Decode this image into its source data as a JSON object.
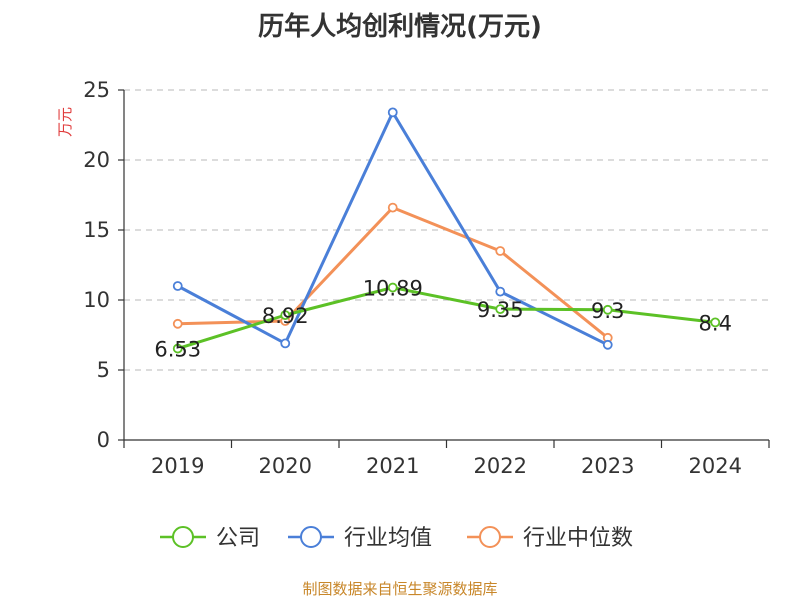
{
  "chart_data": {
    "type": "line",
    "title": "历年人均创利情况(万元)",
    "ylabel": "万元",
    "xlabel": "",
    "categories": [
      "2019",
      "2020",
      "2021",
      "2022",
      "2023",
      "2024"
    ],
    "ylim": [
      0,
      25
    ],
    "yticks": [
      0,
      5,
      10,
      15,
      20,
      25
    ],
    "grid": "horizontal-dashed",
    "legend_position": "bottom",
    "series": [
      {
        "name": "公司",
        "color": "#5cc126",
        "values": [
          6.53,
          8.92,
          10.89,
          9.35,
          9.3,
          8.4
        ],
        "labels": [
          "6.53",
          "8.92",
          "10.89",
          "9.35",
          "9.3",
          "8.4"
        ]
      },
      {
        "name": "行业均值",
        "color": "#4a7fd8",
        "values": [
          11.0,
          6.9,
          23.4,
          10.6,
          6.8,
          null
        ]
      },
      {
        "name": "行业中位数",
        "color": "#f39158",
        "values": [
          8.3,
          8.5,
          16.6,
          13.5,
          7.3,
          null
        ]
      }
    ]
  },
  "footer": "制图数据来自恒生聚源数据库",
  "colors": {
    "ylabel": "#e03c3c",
    "axis": "#333333",
    "grid": "#c8c8c8",
    "footer": "#c8872a"
  }
}
